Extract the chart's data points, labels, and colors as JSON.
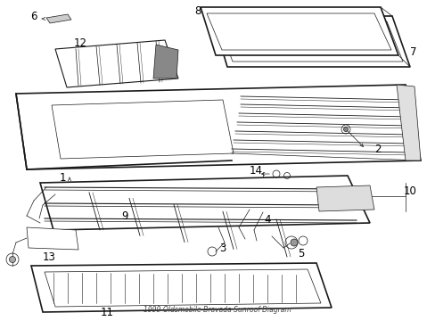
{
  "title": "1999 Oldsmobile Bravada Sunroof Diagram",
  "bg_color": "#ffffff",
  "line_color": "#1a1a1a",
  "text_color": "#000000",
  "fig_width": 4.89,
  "fig_height": 3.6,
  "dpi": 100,
  "lw_main": 1.2,
  "lw_med": 0.8,
  "lw_thin": 0.5,
  "lw_rib": 0.55,
  "hatch_lw": 0.35,
  "label_fs": 8.5
}
